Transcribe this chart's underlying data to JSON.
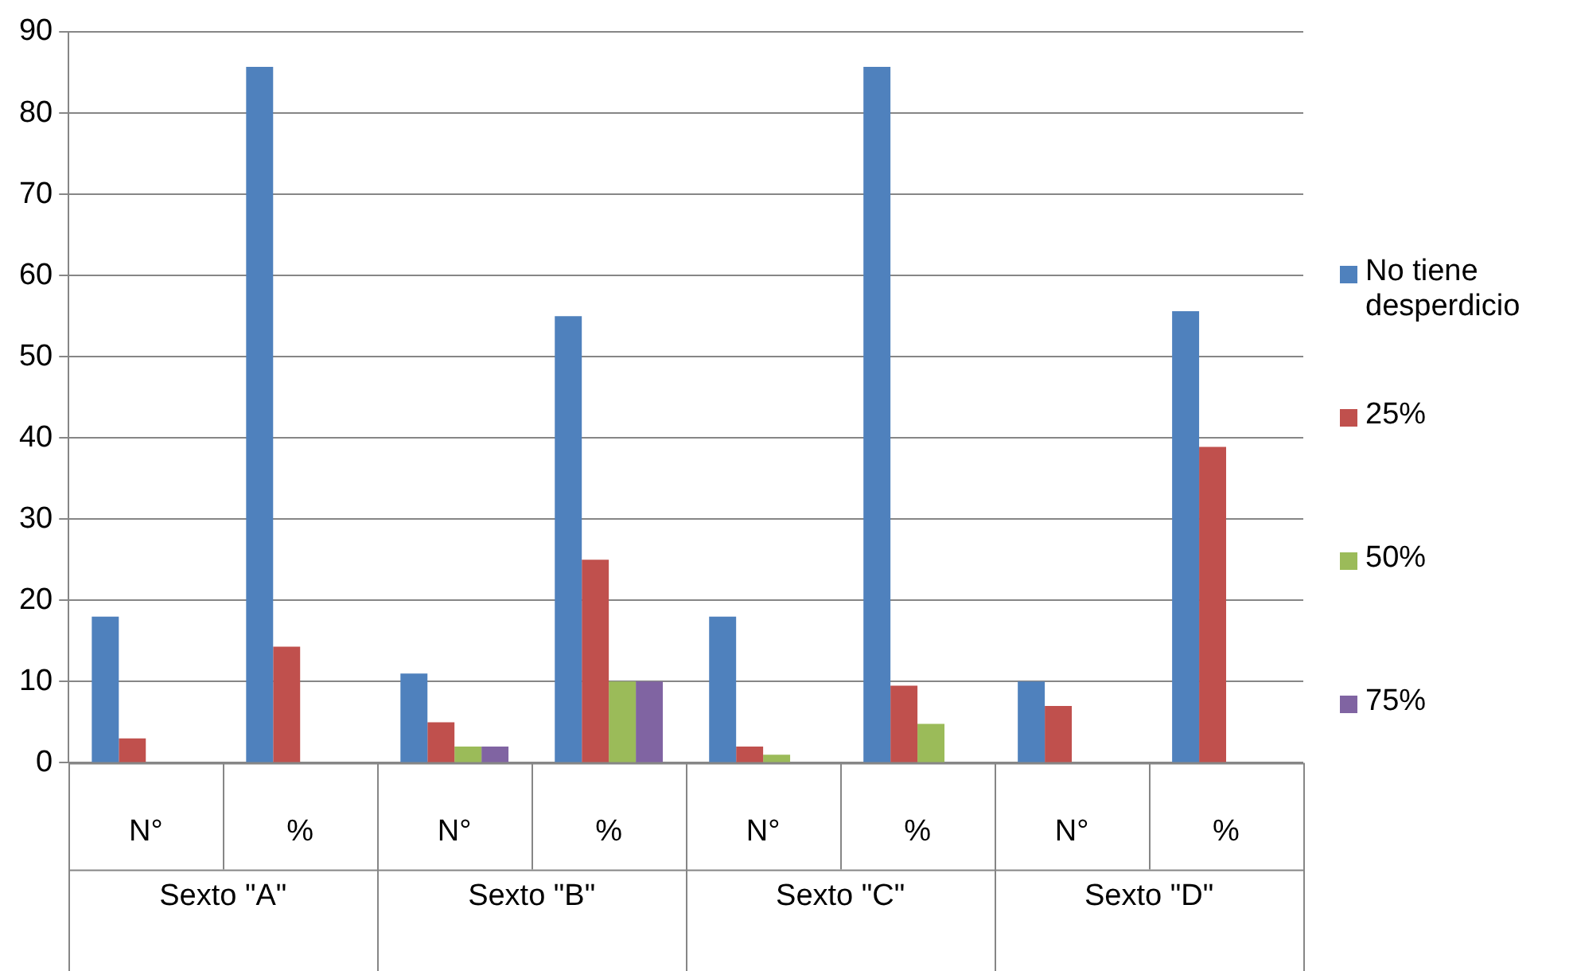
{
  "chart_data": {
    "type": "bar",
    "categories": [
      "N°",
      "%",
      "N°",
      "%",
      "N°",
      "%",
      "N°",
      "%"
    ],
    "series": [
      {
        "name": "No tiene desperdicio",
        "color": "#4f81bd",
        "values": [
          18,
          85.7,
          11,
          55,
          18,
          85.7,
          10,
          55.6
        ]
      },
      {
        "name": "25%",
        "color": "#c0504d",
        "values": [
          3,
          14.3,
          5,
          25,
          2,
          9.5,
          7,
          38.9
        ]
      },
      {
        "name": "50%",
        "color": "#9bbb59",
        "values": [
          0,
          0,
          2,
          10,
          1,
          4.8,
          0,
          0
        ]
      },
      {
        "name": "75%",
        "color": "#8064a2",
        "values": [
          0,
          0,
          2,
          10,
          0,
          0,
          0,
          0
        ]
      }
    ],
    "annotations": [
      "Sexto \"A\"",
      "Sexto \"B\"",
      "Sexto \"C\"",
      "Sexto \"D\""
    ],
    "ylim": [
      0,
      90
    ],
    "yticks": [
      0,
      10,
      20,
      30,
      40,
      50,
      60,
      70,
      80,
      90
    ],
    "grid": "y",
    "legend": "right"
  }
}
